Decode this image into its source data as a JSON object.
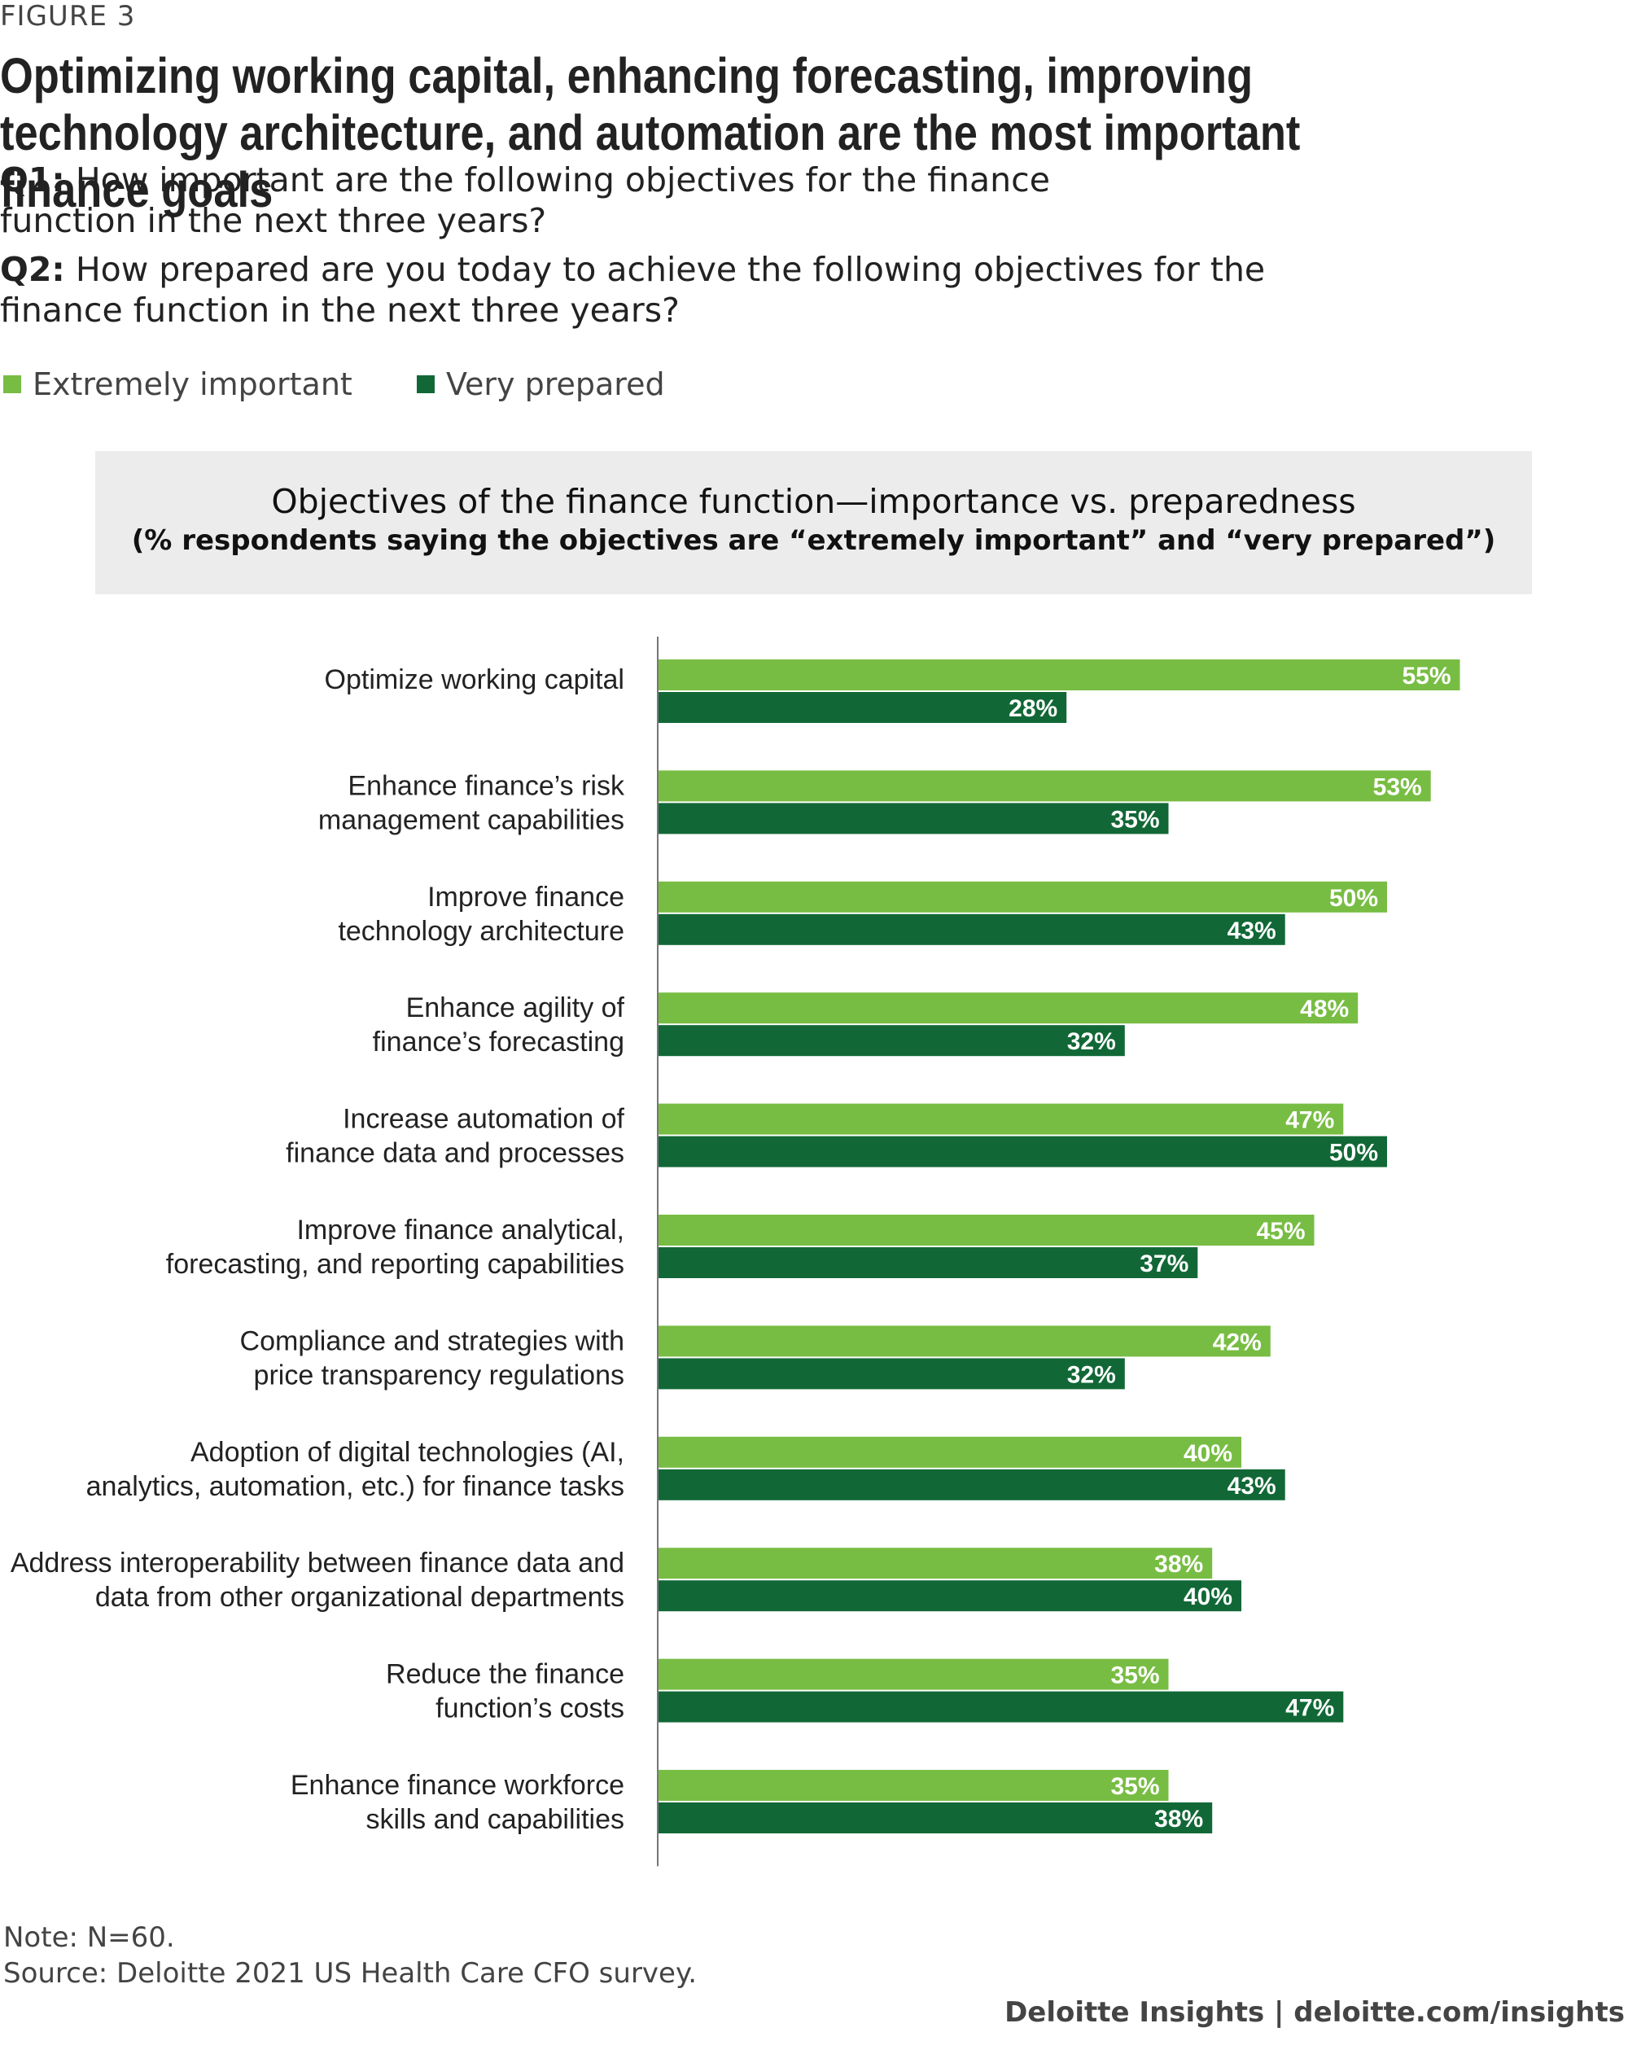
{
  "figure_label": "FIGURE 3",
  "headline": "Optimizing working capital, enhancing forecasting, improving technology architecture, and automation are the most important finance goals",
  "q1": {
    "prefix": "Q1:",
    "text": " How important are the following objectives for the finance function in the next three years?"
  },
  "q2": {
    "prefix": "Q2:",
    "text": " How prepared are you today to achieve the following objectives for the finance function in the next three years?"
  },
  "legend": [
    {
      "label": "Extremely important",
      "color": "#78bd43"
    },
    {
      "label": "Very prepared",
      "color": "#116836"
    }
  ],
  "chart_data": {
    "type": "bar",
    "orientation": "horizontal",
    "title": "Objectives of the finance function—importance vs. preparedness",
    "subtitle": "(% respondents saying the objectives are “extremely important” and “very prepared”)",
    "categories": [
      [
        "Optimize working capital"
      ],
      [
        "Enhance finance’s risk",
        "management capabilities"
      ],
      [
        "Improve finance",
        "technology architecture"
      ],
      [
        "Enhance agility of",
        "finance’s forecasting"
      ],
      [
        "Increase automation of",
        "finance data and processes"
      ],
      [
        "Improve finance analytical,",
        "forecasting, and reporting capabilities"
      ],
      [
        "Compliance and strategies with",
        "price transparency regulations"
      ],
      [
        "Adoption of digital technologies (AI,",
        "analytics, automation, etc.) for finance tasks"
      ],
      [
        "Address interoperability between finance data and",
        "data from other organizational departments"
      ],
      [
        "Reduce the finance",
        "function’s costs"
      ],
      [
        "Enhance finance workforce",
        "skills and capabilities"
      ]
    ],
    "series": [
      {
        "name": "Extremely important",
        "color": "#78bd43",
        "values": [
          55,
          53,
          50,
          48,
          47,
          45,
          42,
          40,
          38,
          35,
          35
        ]
      },
      {
        "name": "Very prepared",
        "color": "#116836",
        "values": [
          28,
          35,
          43,
          32,
          50,
          37,
          32,
          43,
          40,
          47,
          38
        ]
      }
    ],
    "value_suffix": "%",
    "xlim": [
      0,
      55
    ]
  },
  "note": "Note: N=60.",
  "source": "Source: Deloitte 2021 US Health Care CFO survey.",
  "footer": "Deloitte Insights | deloitte.com/insights"
}
